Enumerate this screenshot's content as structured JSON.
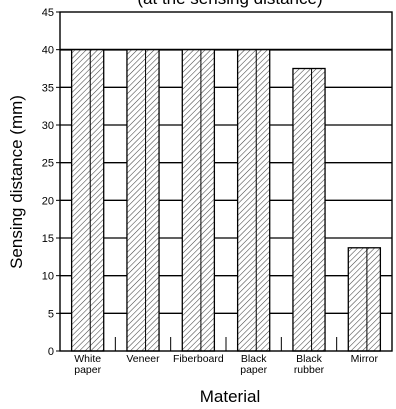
{
  "chart_data": {
    "type": "bar",
    "title": "",
    "clipped_top_text": "(at the sensing distance)",
    "xlabel": "Material",
    "ylabel": "Sensing distance (mm)",
    "ylim": [
      0,
      45
    ],
    "yticks": [
      "0",
      "5",
      "10",
      "15",
      "20",
      "25",
      "30",
      "35",
      "40",
      "45"
    ],
    "categories": [
      [
        "White",
        "paper"
      ],
      [
        "Veneer"
      ],
      [
        "Fiberboard"
      ],
      [
        "Black",
        "paper"
      ],
      [
        "Black",
        "rubber"
      ],
      [
        "Mirror"
      ]
    ],
    "values": [
      40,
      40,
      40,
      40,
      37.5,
      13.7
    ],
    "grid": "horizontal",
    "legend": "none",
    "bar_fill": "hatched"
  }
}
